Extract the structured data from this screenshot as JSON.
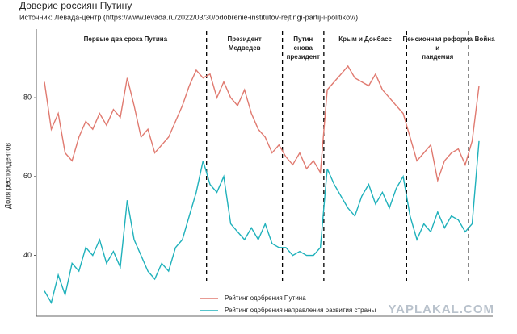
{
  "chart_data": {
    "type": "line",
    "title": "Доверие россиян Путину",
    "subtitle": "Источник: Левада-центр (https://www.levada.ru/2022/03/30/odobrenie-institutov-rejtingi-partij-i-politikov/)",
    "y_label": "Доля респондентов",
    "watermark": "YAPLAKAL.COM",
    "categories": [
      null,
      null,
      null,
      null,
      null,
      null,
      null,
      null,
      null,
      null,
      null,
      null,
      null,
      null,
      null,
      null,
      null,
      null,
      null,
      null,
      null,
      null,
      null,
      null,
      null,
      null,
      null,
      null,
      null,
      null,
      null,
      null,
      null,
      null,
      null,
      null,
      null,
      null,
      null,
      null,
      null,
      null,
      null,
      null,
      null,
      null,
      null,
      null,
      null,
      null,
      null,
      null,
      null,
      null,
      null,
      null,
      null,
      null,
      null,
      null,
      null,
      null,
      null,
      null
    ],
    "series": [
      {
        "name": "Рейтинг одобрения Путина",
        "color": "#e07a70",
        "values": [
          84,
          72,
          76,
          66,
          64,
          70,
          74,
          72,
          76,
          73,
          77,
          75,
          85,
          78,
          70,
          72,
          66,
          68,
          70,
          74,
          78,
          83,
          87,
          85,
          86,
          80,
          84,
          80,
          78,
          82,
          76,
          72,
          70,
          66,
          68,
          65,
          63,
          66,
          62,
          64,
          61,
          82,
          84,
          86,
          88,
          85,
          84,
          83,
          86,
          82,
          80,
          78,
          76,
          70,
          64,
          66,
          68,
          59,
          64,
          66,
          67,
          63,
          69,
          83
        ]
      },
      {
        "name": "Рейтинг одобрения направления развития страны",
        "color": "#1fb1bb",
        "values": [
          31,
          28,
          35,
          30,
          38,
          36,
          42,
          40,
          44,
          38,
          41,
          37,
          54,
          44,
          40,
          36,
          34,
          38,
          36,
          42,
          44,
          50,
          56,
          64,
          58,
          56,
          60,
          48,
          46,
          44,
          47,
          44,
          48,
          43,
          42,
          42,
          40,
          41,
          40,
          40,
          42,
          62,
          58,
          55,
          52,
          50,
          55,
          58,
          53,
          56,
          52,
          57,
          60,
          50,
          44,
          48,
          46,
          51,
          47,
          50,
          49,
          46,
          48,
          69
        ]
      }
    ],
    "periods": [
      {
        "label": [
          "Первые два срока Путина"
        ],
        "end": 23
      },
      {
        "label": [
          "Президент",
          "Медведев"
        ],
        "end": 34
      },
      {
        "label": [
          "Путин",
          "снова",
          "президент"
        ],
        "end": 40
      },
      {
        "label": [
          "Крым и Донбасс"
        ],
        "end": 52
      },
      {
        "label": [
          "Пенсионная реформа",
          "и",
          "пандемия"
        ],
        "end": 61
      },
      {
        "label": [
          "Война"
        ],
        "end": 63
      }
    ],
    "ylim": [
      26,
      97
    ],
    "yticks": [
      40,
      60,
      80
    ],
    "grid": false,
    "legend": "bottom"
  }
}
